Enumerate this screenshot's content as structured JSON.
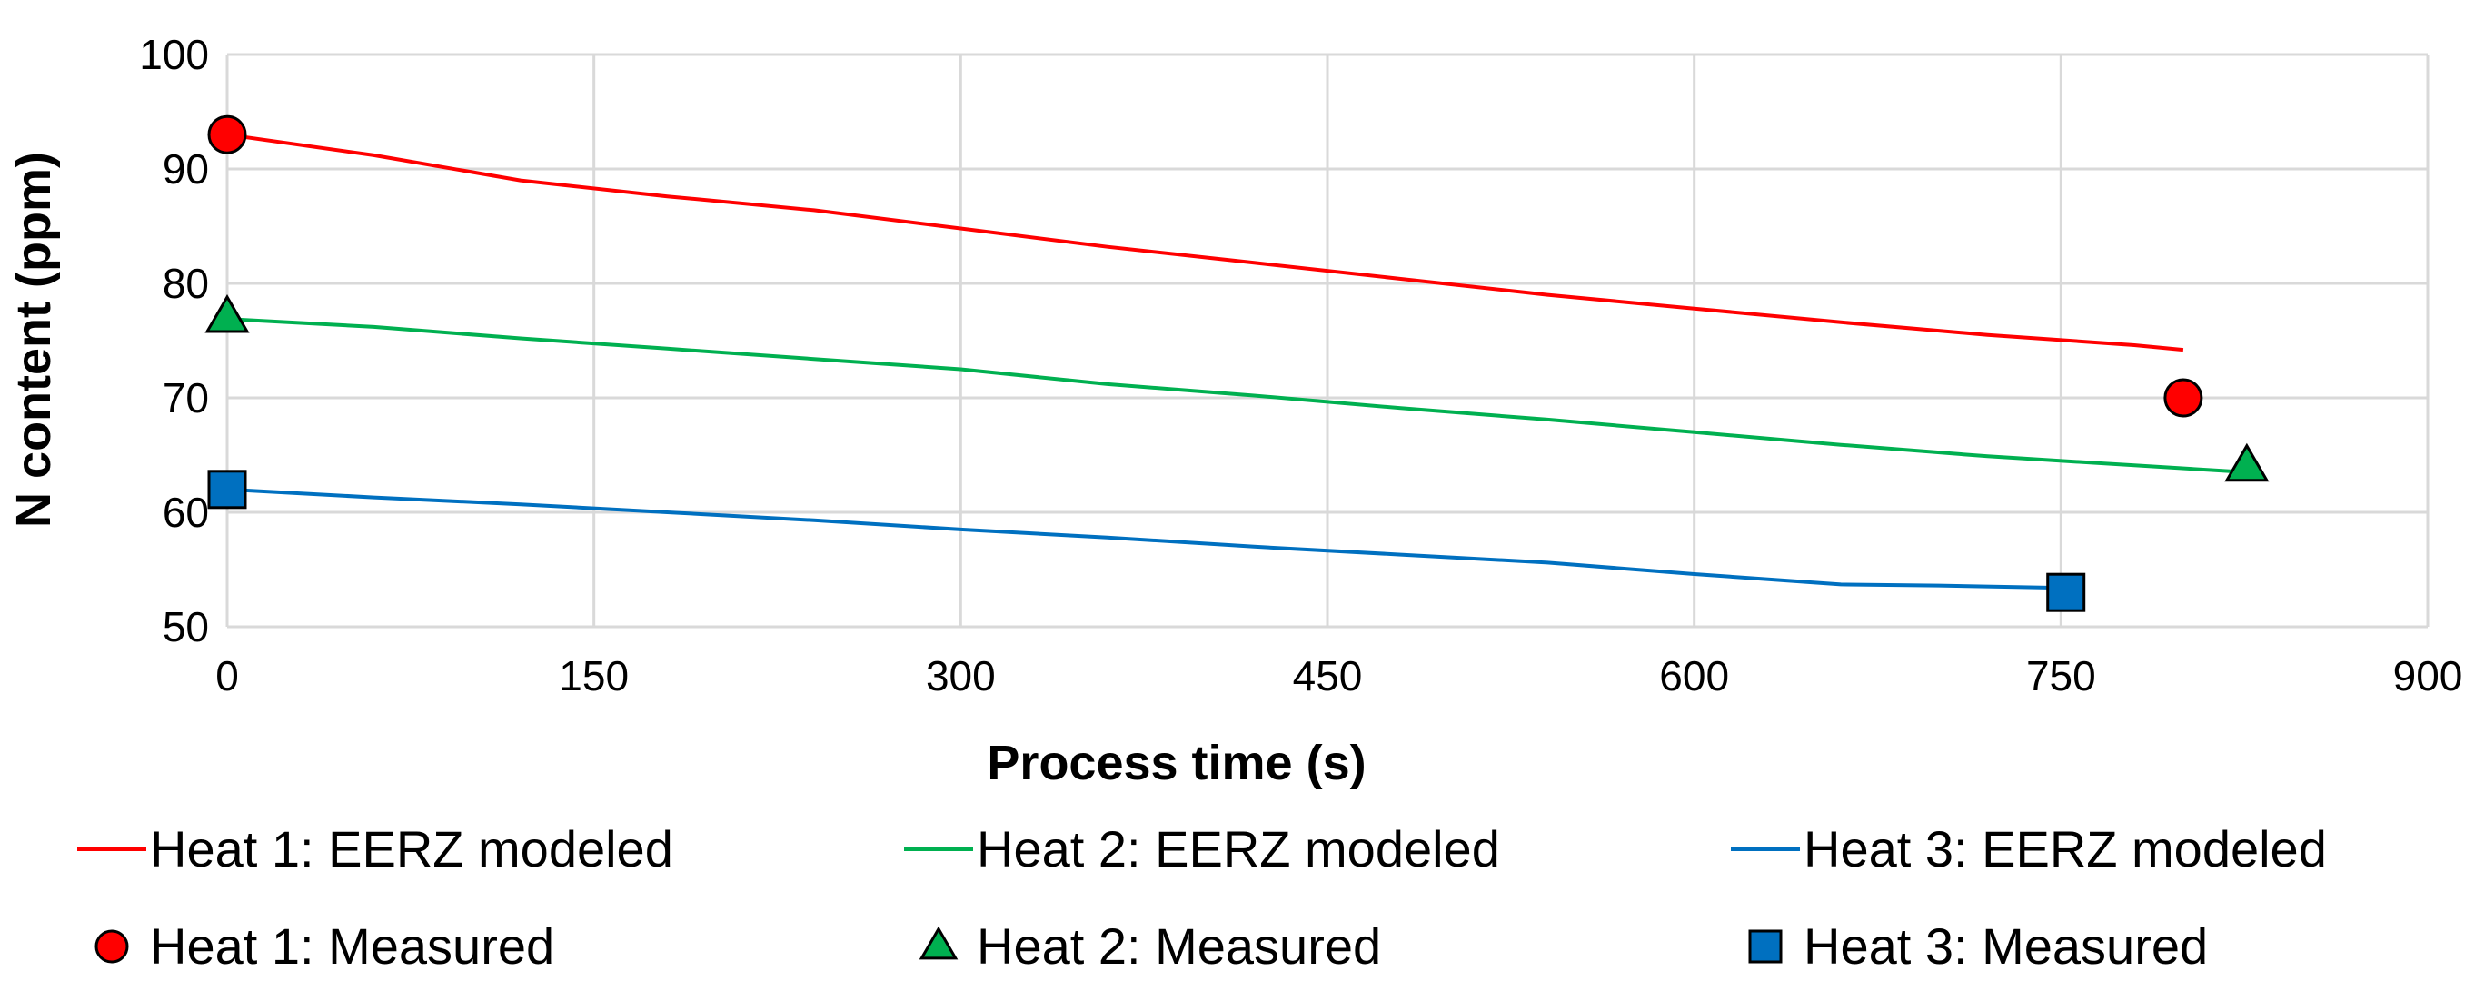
{
  "chart_data": {
    "type": "line",
    "title": "",
    "xlabel": "Process time (s)",
    "ylabel": "N content (ppm)",
    "xlim": [
      0,
      900
    ],
    "ylim": [
      50,
      100
    ],
    "xticks": [
      0,
      150,
      300,
      450,
      600,
      750,
      900
    ],
    "yticks": [
      50,
      60,
      70,
      80,
      90,
      100
    ],
    "grid": true,
    "series": [
      {
        "name": "Heat 1: EERZ modeled",
        "kind": "line",
        "color": "#ff0000",
        "points": [
          [
            0,
            93.0
          ],
          [
            60,
            91.2
          ],
          [
            120,
            89.0
          ],
          [
            180,
            87.6
          ],
          [
            240,
            86.4
          ],
          [
            300,
            84.8
          ],
          [
            360,
            83.2
          ],
          [
            420,
            81.8
          ],
          [
            480,
            80.4
          ],
          [
            540,
            79.0
          ],
          [
            600,
            77.8
          ],
          [
            660,
            76.6
          ],
          [
            720,
            75.5
          ],
          [
            780,
            74.6
          ],
          [
            800,
            74.2
          ]
        ]
      },
      {
        "name": "Heat 2: EERZ modeled",
        "kind": "line",
        "color": "#00b050",
        "points": [
          [
            0,
            76.9
          ],
          [
            60,
            76.2
          ],
          [
            120,
            75.2
          ],
          [
            180,
            74.3
          ],
          [
            240,
            73.4
          ],
          [
            300,
            72.5
          ],
          [
            360,
            71.2
          ],
          [
            420,
            70.2
          ],
          [
            480,
            69.1
          ],
          [
            540,
            68.1
          ],
          [
            600,
            67.0
          ],
          [
            660,
            65.9
          ],
          [
            720,
            64.9
          ],
          [
            780,
            64.1
          ],
          [
            826,
            63.5
          ]
        ]
      },
      {
        "name": "Heat 3: EERZ modeled",
        "kind": "line",
        "color": "#0070c0",
        "points": [
          [
            0,
            62.0
          ],
          [
            60,
            61.3
          ],
          [
            120,
            60.7
          ],
          [
            180,
            60.0
          ],
          [
            240,
            59.3
          ],
          [
            300,
            58.5
          ],
          [
            360,
            57.8
          ],
          [
            420,
            57.0
          ],
          [
            480,
            56.3
          ],
          [
            540,
            55.6
          ],
          [
            600,
            54.6
          ],
          [
            660,
            53.7
          ],
          [
            700,
            53.6
          ],
          [
            752,
            53.4
          ]
        ]
      },
      {
        "name": "Heat 1: Measured",
        "kind": "marker",
        "marker": "circle",
        "color": "#ff0000",
        "points": [
          [
            0,
            93
          ],
          [
            800,
            70
          ]
        ]
      },
      {
        "name": "Heat 2: Measured",
        "kind": "marker",
        "marker": "triangle",
        "color": "#00b050",
        "points": [
          [
            0,
            77
          ],
          [
            826,
            64
          ]
        ]
      },
      {
        "name": "Heat 3: Measured",
        "kind": "marker",
        "marker": "square",
        "color": "#0070c0",
        "points": [
          [
            0,
            62
          ],
          [
            752,
            53
          ]
        ]
      }
    ],
    "legend_position": "bottom"
  }
}
